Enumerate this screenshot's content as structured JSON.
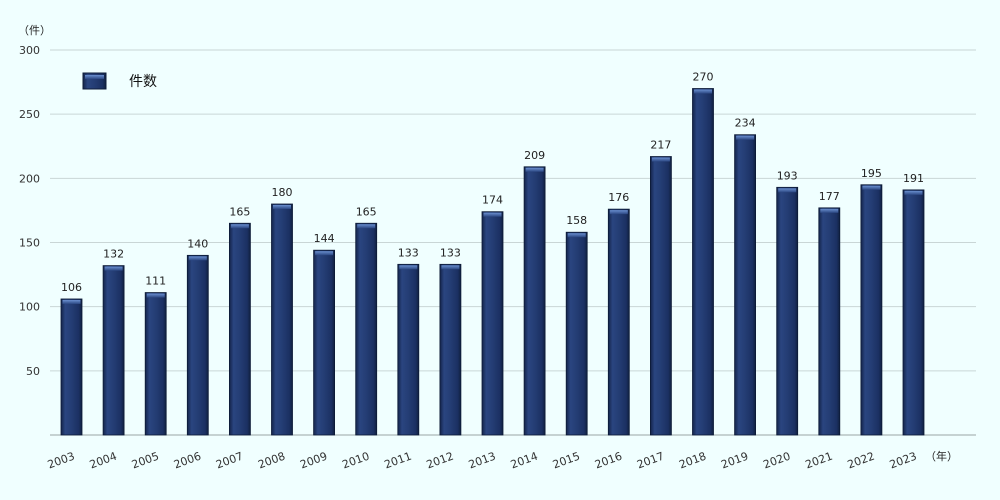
{
  "chart_data": {
    "type": "bar",
    "categories": [
      "2003",
      "2004",
      "2005",
      "2006",
      "2007",
      "2008",
      "2009",
      "2010",
      "2011",
      "2012",
      "2013",
      "2014",
      "2015",
      "2016",
      "2017",
      "2018",
      "2019",
      "2020",
      "2021",
      "2022",
      "2023"
    ],
    "series": [
      {
        "name": "件数",
        "values": [
          106,
          132,
          111,
          140,
          165,
          180,
          144,
          165,
          133,
          133,
          174,
          209,
          158,
          176,
          217,
          270,
          234,
          193,
          177,
          195,
          191
        ]
      }
    ],
    "title": "",
    "xlabel": "（年）",
    "ylabel": "（件）",
    "ylim": [
      0,
      300
    ],
    "yticks": [
      50,
      100,
      150,
      200,
      250,
      300
    ],
    "grid": true,
    "legend_position": "top-left",
    "colors": {
      "bar": "#1f3566",
      "bar_top": "#4a6fb0",
      "background": "#f0ffff"
    }
  }
}
